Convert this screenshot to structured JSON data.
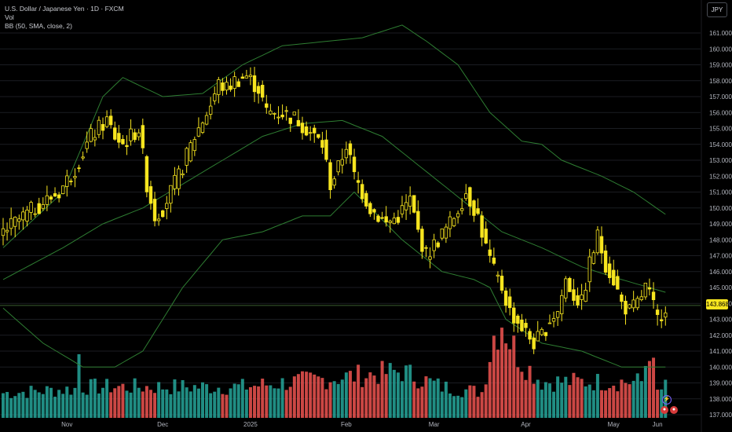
{
  "legend": {
    "symbol_line": "U.S. Dollar / Japanese Yen · 1D · FXCM",
    "vol_label": "Vol",
    "bb_label": "BB (50, SMA, close, 2)"
  },
  "currency_button": "JPY",
  "last_price_label": "143.868",
  "colors": {
    "up_candle": "#f7e51f",
    "down_candle": "#f7e51f",
    "band_line": "#2e7d32",
    "vol_up": "#26a69a",
    "vol_down": "#ef5350",
    "grid": "#1b1d22",
    "price_line": "#3a5e2f"
  },
  "icons": {
    "flash": "lightning-icon",
    "flags": "us-jp-flags-icon"
  },
  "chart_data": {
    "type": "candlestick",
    "title": "U.S. Dollar / Japanese Yen · 1D · FXCM",
    "ylim": [
      136.6,
      162.2
    ],
    "y_ticks": [
      "161.000",
      "160.000",
      "159.000",
      "158.000",
      "157.000",
      "156.000",
      "155.000",
      "154.000",
      "153.000",
      "152.000",
      "151.000",
      "150.000",
      "149.000",
      "148.000",
      "147.000",
      "146.000",
      "145.000",
      "144.000",
      "143.000",
      "142.000",
      "141.000",
      "140.000",
      "139.000",
      "138.000",
      "137.000"
    ],
    "x_ticks": [
      "Nov",
      "Dec",
      "2025",
      "Feb",
      "Mar",
      "Apr",
      "May",
      "Jun"
    ],
    "last_price": 143.868,
    "price_keypoints": [
      [
        0,
        148.5
      ],
      [
        8,
        150.0
      ],
      [
        14,
        151.0
      ],
      [
        18,
        152.5
      ],
      [
        22,
        154.5
      ],
      [
        26,
        155.5
      ],
      [
        28,
        154.5
      ],
      [
        30,
        154.0
      ],
      [
        34,
        155.0
      ],
      [
        36,
        151.5
      ],
      [
        38,
        149.5
      ],
      [
        40,
        150.0
      ],
      [
        44,
        152.0
      ],
      [
        48,
        154.5
      ],
      [
        52,
        156.5
      ],
      [
        54,
        157.8
      ],
      [
        56,
        157.5
      ],
      [
        58,
        158.0
      ],
      [
        61,
        158.3
      ],
      [
        64,
        157.5
      ],
      [
        66,
        156.0
      ],
      [
        70,
        156.0
      ],
      [
        74,
        155.5
      ],
      [
        78,
        154.5
      ],
      [
        80,
        154.0
      ],
      [
        82,
        151.5
      ],
      [
        84,
        152.5
      ],
      [
        86,
        154.0
      ],
      [
        88,
        152.0
      ],
      [
        92,
        150.0
      ],
      [
        96,
        149.0
      ],
      [
        99,
        149.5
      ],
      [
        102,
        150.5
      ],
      [
        104,
        148.5
      ],
      [
        106,
        147.0
      ],
      [
        109,
        148.0
      ],
      [
        112,
        149.0
      ],
      [
        114,
        150.0
      ],
      [
        116,
        151.0
      ],
      [
        118,
        150.0
      ],
      [
        119,
        149.5
      ],
      [
        121,
        147.5
      ],
      [
        123,
        146.0
      ],
      [
        125,
        145.0
      ],
      [
        127,
        143.5
      ],
      [
        130,
        142.5
      ],
      [
        133,
        141.5
      ],
      [
        135,
        142.0
      ],
      [
        137,
        143.0
      ],
      [
        139,
        143.5
      ],
      [
        141,
        145.5
      ],
      [
        143,
        144.5
      ],
      [
        145,
        144.0
      ],
      [
        147,
        146.5
      ],
      [
        149,
        148.2
      ],
      [
        151,
        146.5
      ],
      [
        153,
        145.5
      ],
      [
        155,
        144.0
      ],
      [
        157,
        143.5
      ],
      [
        159,
        144.0
      ],
      [
        161,
        145.0
      ],
      [
        162,
        144.5
      ],
      [
        164,
        143.0
      ],
      [
        166,
        143.87
      ]
    ],
    "bollinger": {
      "period": 50,
      "basis": "SMA",
      "source": "close",
      "stddev": 2,
      "upper_keypoints": [
        [
          0,
          147.5
        ],
        [
          15,
          151.0
        ],
        [
          25,
          157.0
        ],
        [
          30,
          158.2
        ],
        [
          40,
          157.0
        ],
        [
          50,
          157.2
        ],
        [
          60,
          159.0
        ],
        [
          70,
          160.2
        ],
        [
          90,
          160.7
        ],
        [
          100,
          161.5
        ],
        [
          106,
          160.5
        ],
        [
          114,
          159.0
        ],
        [
          122,
          156.0
        ],
        [
          130,
          154.2
        ],
        [
          135,
          154.0
        ],
        [
          140,
          153.0
        ],
        [
          150,
          152.0
        ],
        [
          158,
          151.0
        ],
        [
          166,
          149.6
        ]
      ],
      "middle_keypoints": [
        [
          0,
          145.5
        ],
        [
          15,
          147.5
        ],
        [
          25,
          149.0
        ],
        [
          35,
          150.0
        ],
        [
          45,
          151.5
        ],
        [
          55,
          153.0
        ],
        [
          65,
          154.5
        ],
        [
          75,
          155.3
        ],
        [
          85,
          155.5
        ],
        [
          95,
          154.5
        ],
        [
          105,
          152.5
        ],
        [
          115,
          150.5
        ],
        [
          125,
          148.5
        ],
        [
          135,
          147.5
        ],
        [
          145,
          146.3
        ],
        [
          155,
          145.5
        ],
        [
          166,
          144.7
        ]
      ],
      "lower_keypoints": [
        [
          0,
          143.7
        ],
        [
          10,
          141.5
        ],
        [
          20,
          140.0
        ],
        [
          28,
          140.0
        ],
        [
          35,
          141.0
        ],
        [
          45,
          145.0
        ],
        [
          55,
          148.0
        ],
        [
          65,
          148.5
        ],
        [
          75,
          149.5
        ],
        [
          82,
          149.5
        ],
        [
          88,
          151.0
        ],
        [
          92,
          150.0
        ],
        [
          100,
          148.0
        ],
        [
          110,
          146.0
        ],
        [
          118,
          145.5
        ],
        [
          122,
          145.0
        ],
        [
          126,
          143.0
        ],
        [
          135,
          141.5
        ],
        [
          145,
          141.0
        ],
        [
          155,
          140.0
        ],
        [
          166,
          140.0
        ]
      ]
    },
    "volume": {
      "keypoints": [
        [
          0,
          0.24
        ],
        [
          18,
          0.28
        ],
        [
          19,
          0.62
        ],
        [
          20,
          0.3
        ],
        [
          60,
          0.3
        ],
        [
          100,
          0.45
        ],
        [
          110,
          0.3
        ],
        [
          120,
          0.25
        ],
        [
          123,
          0.8
        ],
        [
          125,
          0.95
        ],
        [
          127,
          0.75
        ],
        [
          130,
          0.55
        ],
        [
          135,
          0.35
        ],
        [
          160,
          0.35
        ],
        [
          162,
          0.7
        ],
        [
          164,
          0.25
        ],
        [
          166,
          0.3
        ]
      ],
      "max_relative": 1.0
    }
  }
}
